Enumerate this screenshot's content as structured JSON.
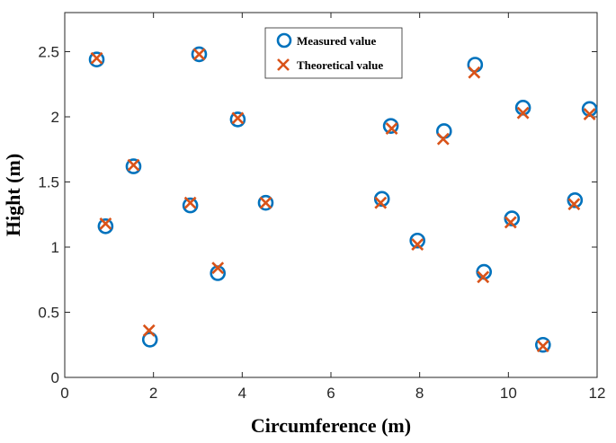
{
  "chart_data": {
    "type": "scatter",
    "xlabel": "Circumference (m)",
    "ylabel": "Hight (m)",
    "xlim": [
      0,
      12
    ],
    "ylim": [
      0,
      2.8
    ],
    "xticks": [
      0,
      2,
      4,
      6,
      8,
      10,
      12
    ],
    "yticks": [
      0,
      0.5,
      1,
      1.5,
      2,
      2.5
    ],
    "xtick_labels": [
      "0",
      "2",
      "4",
      "6",
      "8",
      "10",
      "12"
    ],
    "ytick_labels": [
      "0",
      "0.5",
      "1",
      "1.5",
      "2",
      "2.5"
    ],
    "grid": false,
    "legend_position": "top-center",
    "series": [
      {
        "name": "Measured value",
        "marker": "circle",
        "color": "#0072BD",
        "points": [
          {
            "x": 0.72,
            "y": 2.44
          },
          {
            "x": 0.92,
            "y": 1.16
          },
          {
            "x": 1.55,
            "y": 1.62
          },
          {
            "x": 1.92,
            "y": 0.29
          },
          {
            "x": 2.83,
            "y": 1.32
          },
          {
            "x": 3.03,
            "y": 2.48
          },
          {
            "x": 3.45,
            "y": 0.8
          },
          {
            "x": 3.9,
            "y": 1.98
          },
          {
            "x": 4.53,
            "y": 1.34
          },
          {
            "x": 7.15,
            "y": 1.37
          },
          {
            "x": 7.35,
            "y": 1.93
          },
          {
            "x": 7.95,
            "y": 1.05
          },
          {
            "x": 8.55,
            "y": 1.89
          },
          {
            "x": 9.25,
            "y": 2.4
          },
          {
            "x": 9.45,
            "y": 0.81
          },
          {
            "x": 10.08,
            "y": 1.22
          },
          {
            "x": 10.33,
            "y": 2.07
          },
          {
            "x": 10.78,
            "y": 0.25
          },
          {
            "x": 11.5,
            "y": 1.36
          },
          {
            "x": 11.83,
            "y": 2.06
          }
        ]
      },
      {
        "name": "Theoretical value",
        "marker": "x",
        "color": "#D95319",
        "points": [
          {
            "x": 0.72,
            "y": 2.45
          },
          {
            "x": 0.92,
            "y": 1.18
          },
          {
            "x": 1.55,
            "y": 1.63
          },
          {
            "x": 1.9,
            "y": 0.36
          },
          {
            "x": 2.83,
            "y": 1.34
          },
          {
            "x": 3.03,
            "y": 2.48
          },
          {
            "x": 3.45,
            "y": 0.84
          },
          {
            "x": 3.9,
            "y": 1.99
          },
          {
            "x": 4.53,
            "y": 1.34
          },
          {
            "x": 7.12,
            "y": 1.34
          },
          {
            "x": 7.37,
            "y": 1.91
          },
          {
            "x": 7.95,
            "y": 1.02
          },
          {
            "x": 8.53,
            "y": 1.83
          },
          {
            "x": 9.23,
            "y": 2.34
          },
          {
            "x": 9.43,
            "y": 0.77
          },
          {
            "x": 10.05,
            "y": 1.19
          },
          {
            "x": 10.33,
            "y": 2.03
          },
          {
            "x": 10.78,
            "y": 0.24
          },
          {
            "x": 11.48,
            "y": 1.33
          },
          {
            "x": 11.83,
            "y": 2.02
          }
        ]
      }
    ]
  }
}
